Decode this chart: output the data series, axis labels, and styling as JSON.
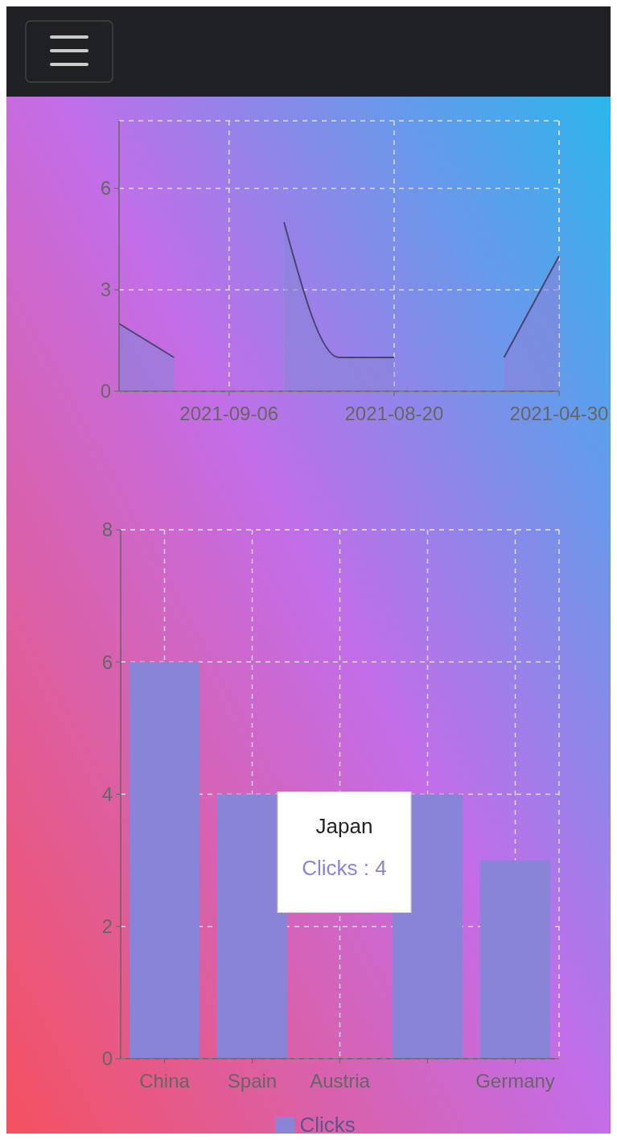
{
  "chart_data": [
    {
      "type": "area",
      "categories": [
        null,
        null,
        "2021-09-06",
        null,
        null,
        "2021-08-20",
        null,
        null,
        "2021-04-30"
      ],
      "series": [
        {
          "color": "#8884d8",
          "values": [
            2,
            1,
            null,
            5,
            1,
            1,
            null,
            1,
            4
          ]
        }
      ],
      "ylim": [
        0,
        8
      ],
      "yticks": [
        0,
        3,
        6
      ],
      "grid": true
    },
    {
      "type": "bar",
      "categories": [
        "China",
        "Spain",
        "Austria",
        null,
        "Germany"
      ],
      "series": [
        {
          "name": "Clicks",
          "color": "#8884d8",
          "values": [
            6,
            4,
            null,
            4,
            3
          ]
        }
      ],
      "ylim": [
        0,
        8
      ],
      "yticks": [
        0,
        2,
        4,
        6,
        8
      ],
      "grid": true,
      "legend": "bottom",
      "annotations": [
        "Japan",
        "Clicks : 4"
      ]
    }
  ]
}
